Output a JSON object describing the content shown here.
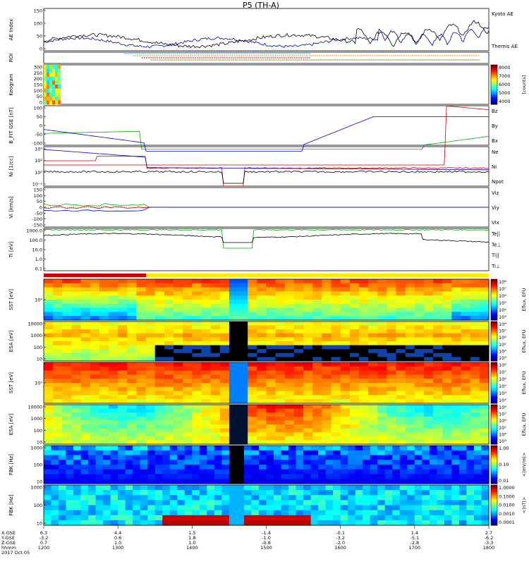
{
  "title": "P5 (TH-A)",
  "chart_data": {
    "type": "line",
    "title": "P5 (TH-A)",
    "x_axis": {
      "ticks": [
        "1200",
        "1300",
        "1400",
        "1500",
        "1600",
        "1700",
        "1800"
      ],
      "rows": [
        {
          "label": "X-GSE",
          "values": [
            "6.3",
            "4.4",
            "1.5",
            "-1.4",
            "-0.1",
            "1.4",
            "2.7"
          ]
        },
        {
          "label": "Y-GSE",
          "values": [
            "-3.2",
            "0.6",
            "1.8",
            "-1.0",
            "-3.2",
            "-5.1",
            "-6.2"
          ]
        },
        {
          "label": "Z-GSE",
          "values": [
            "0.7",
            "1.0",
            "1.0",
            "-0.8",
            "-2.0",
            "-2.8",
            "-3.3"
          ]
        },
        {
          "label": "hhmm",
          "values": [
            "1200",
            "1300",
            "1400",
            "1500",
            "1600",
            "1700",
            "1800"
          ]
        }
      ],
      "date": "2017 Oct 05"
    },
    "panels": [
      {
        "id": "ae",
        "type": "line",
        "ylabel": "AE Index",
        "yticks": [
          "150",
          "100",
          "50",
          "0"
        ],
        "ylim": [
          0,
          150
        ],
        "series": [
          {
            "name": "Kyoto AE",
            "color": "#00008b"
          },
          {
            "name": "Themis AE",
            "color": "#000000"
          }
        ]
      },
      {
        "id": "roi",
        "type": "bars",
        "ylabel": "ROI"
      },
      {
        "id": "keogram",
        "type": "heatmap",
        "ylabel": "Keogram",
        "yticks": [
          "300",
          "250",
          "200",
          "150",
          "100",
          "50",
          "0"
        ],
        "colorbar": {
          "ticks": [
            "8000",
            "7000",
            "6000",
            "5000",
            "4000"
          ],
          "label": "[counts]"
        }
      },
      {
        "id": "bfit",
        "type": "line",
        "ylabel": "B_FIT GSE [nT]",
        "yticks": [
          "100",
          "50",
          "0",
          "-50",
          "-100"
        ],
        "ylim": [
          -100,
          100
        ],
        "series": [
          {
            "name": "Bz",
            "color": "#cc0000"
          },
          {
            "name": "By",
            "color": "#00aa00"
          },
          {
            "name": "Bx",
            "color": "#0000cc"
          }
        ]
      },
      {
        "id": "ni",
        "type": "line",
        "ylabel": "Ni [1/cc]",
        "log": true,
        "yticks": [
          "10⁴",
          "10²",
          "10⁰",
          "10⁻²"
        ],
        "series": [
          {
            "name": "Ne",
            "color": "#cc0000"
          },
          {
            "name": "Ni",
            "color": "#000000"
          },
          {
            "name": "Npot",
            "color": "#0000cc"
          }
        ]
      },
      {
        "id": "vi",
        "type": "line",
        "ylabel": "Vi [km/s]",
        "yticks": [
          "150",
          "100",
          "50",
          "0",
          "-50",
          "-100",
          "-150"
        ],
        "ylim": [
          -150,
          150
        ],
        "series": [
          {
            "name": "Viz",
            "color": "#cc0000"
          },
          {
            "name": "Viy",
            "color": "#00aa00"
          },
          {
            "name": "Vix",
            "color": "#0000cc"
          }
        ]
      },
      {
        "id": "ti",
        "type": "line",
        "ylabel": "Ti [eV]",
        "log": true,
        "yticks": [
          "1000.0",
          "100.0",
          "10.0",
          "1.0",
          "0.1"
        ],
        "series": [
          {
            "name": "Te||",
            "color": "#000000"
          },
          {
            "name": "Te⊥",
            "color": "#cc0000"
          },
          {
            "name": "Ti||",
            "color": "#00aa00"
          },
          {
            "name": "Ti⊥",
            "color": "#0000cc"
          }
        ]
      },
      {
        "id": "sst_i",
        "type": "heatmap",
        "ylabel": "SST [eV]",
        "yticks": [
          "10⁴"
        ],
        "colorbar": {
          "ticks": [
            "10⁸",
            "10⁷",
            "10⁶",
            "10⁵",
            "10⁴",
            "10³"
          ],
          "label": "Eflux, EFU"
        }
      },
      {
        "id": "esa_i",
        "type": "heatmap",
        "ylabel": "ESA [eV]",
        "yticks": [
          "10000",
          "1000",
          "100",
          "10"
        ],
        "colorbar": {
          "ticks": [
            "10⁸",
            "10⁷",
            "10⁶",
            "10⁵",
            "10⁴",
            "10³"
          ],
          "label": "Eflux, EFU"
        }
      },
      {
        "id": "sst_e",
        "type": "heatmap",
        "ylabel": "SST [eV]",
        "yticks": [
          "10⁵"
        ],
        "colorbar": {
          "ticks": [
            "10⁸",
            "10⁷",
            "10⁶",
            "10⁵",
            "10⁴",
            "10³"
          ],
          "label": "Eflux, EFU"
        }
      },
      {
        "id": "esa_e",
        "type": "heatmap",
        "ylabel": "ESA [eV]",
        "yticks": [
          "10000",
          "1000",
          "100",
          "10"
        ],
        "colorbar": {
          "ticks": [
            "10⁸",
            "10⁷",
            "10⁶",
            "10⁵",
            "10⁴",
            "10³"
          ],
          "label": "Eflux, EFU"
        }
      },
      {
        "id": "fbk_e",
        "type": "heatmap",
        "ylabel": "FBK [Hz]",
        "yticks": [
          "1000",
          "100",
          "10"
        ],
        "colorbar": {
          "ticks": [
            "1.00",
            "0.10",
            "0.01"
          ],
          "label": "<|mV/m|>"
        }
      },
      {
        "id": "fbk_b",
        "type": "heatmap",
        "ylabel": "FBK [Hz]",
        "yticks": [
          "1000",
          "100",
          "10"
        ],
        "colorbar": {
          "ticks": [
            "1.0000",
            "0.1000",
            "0.0100",
            "0.0010",
            "0.0001"
          ],
          "label": "<|nT|>"
        }
      }
    ]
  }
}
